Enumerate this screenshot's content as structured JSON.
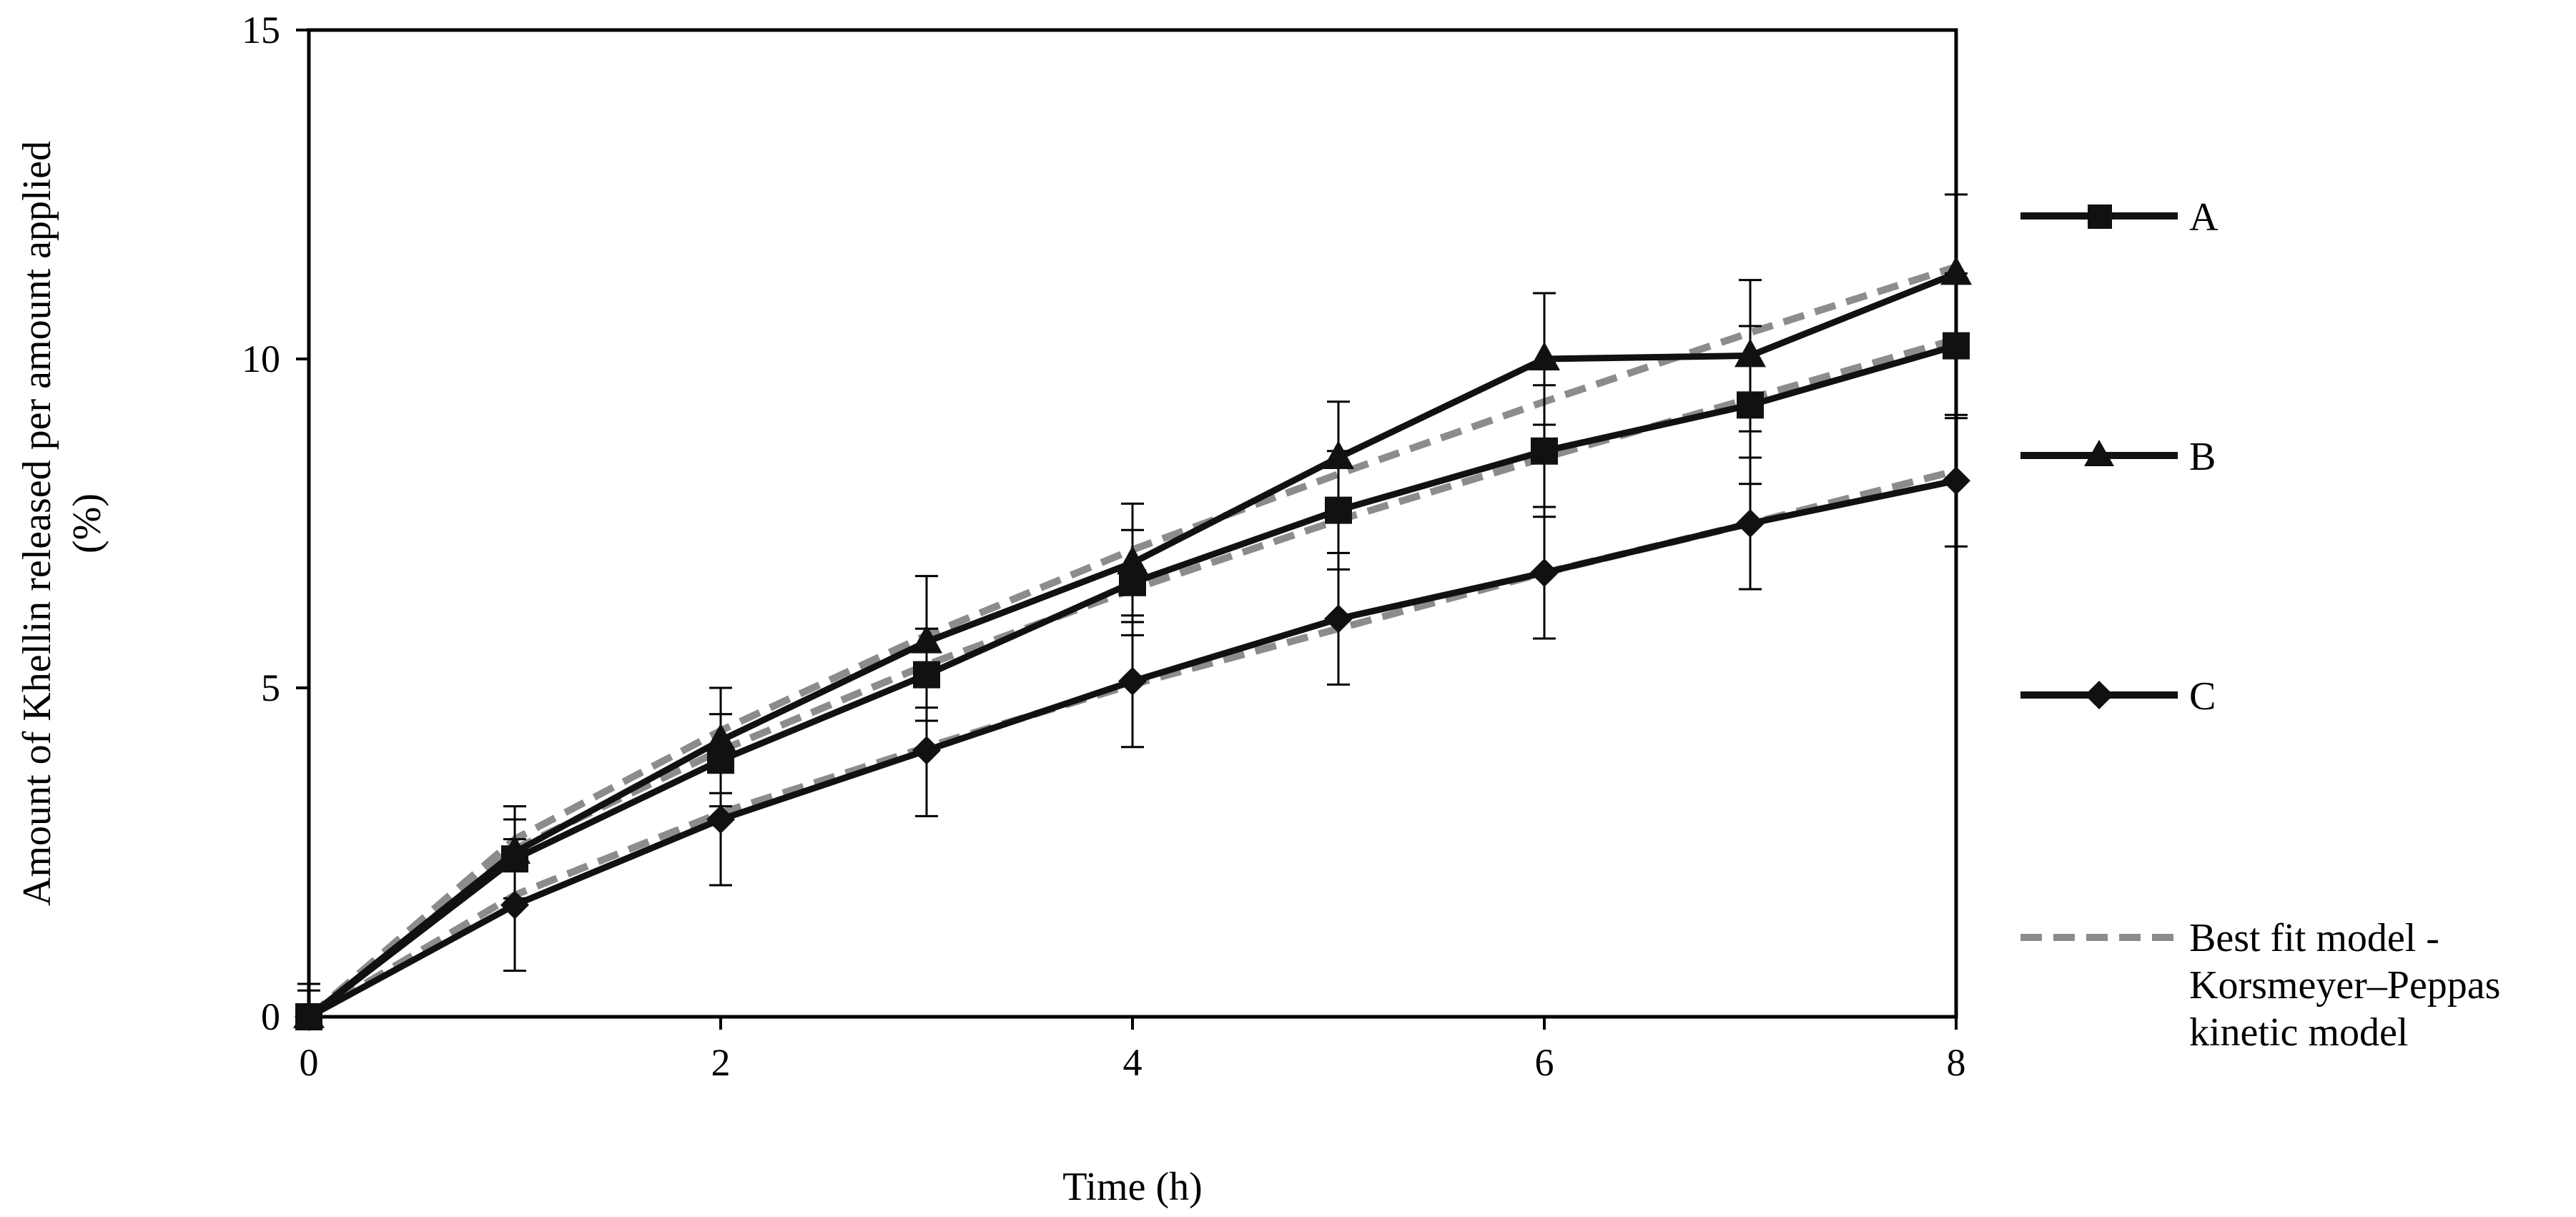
{
  "chart_data": {
    "type": "line",
    "title": "",
    "xlabel": "Time (h)",
    "ylabel_line1": "Amount of Khellin released per amount applied",
    "ylabel_line2": "(%)",
    "xlim": [
      0,
      8
    ],
    "ylim": [
      0,
      15
    ],
    "xticks": [
      "0",
      "2",
      "4",
      "6",
      "8"
    ],
    "yticks": [
      "0",
      "5",
      "10",
      "15"
    ],
    "grid": false,
    "legend_position": "right",
    "x": [
      0,
      1,
      2,
      3,
      4,
      5,
      6,
      7,
      8
    ],
    "series": [
      {
        "name": "A",
        "marker": "square",
        "values": [
          0,
          2.4,
          3.9,
          5.2,
          6.6,
          7.7,
          8.6,
          9.3,
          10.2
        ],
        "errors": [
          0.5,
          0.6,
          0.7,
          0.7,
          0.8,
          0.9,
          1.0,
          1.2,
          1.1
        ],
        "fit": [
          0,
          2.55,
          4.05,
          5.35,
          6.5,
          7.55,
          8.5,
          9.4,
          10.3
        ]
      },
      {
        "name": "B",
        "marker": "triangle",
        "values": [
          0,
          2.5,
          4.2,
          5.7,
          6.9,
          8.5,
          10.0,
          10.05,
          11.3
        ],
        "errors": [
          0.5,
          0.7,
          0.8,
          1.0,
          0.9,
          0.85,
          1.0,
          1.15,
          1.2
        ],
        "fit": [
          0,
          2.7,
          4.35,
          5.8,
          7.1,
          8.25,
          9.35,
          10.4,
          11.4
        ]
      },
      {
        "name": "C",
        "marker": "diamond",
        "values": [
          0,
          1.7,
          3.0,
          4.05,
          5.1,
          6.05,
          6.75,
          7.5,
          8.15
        ],
        "errors": [
          0.4,
          1.0,
          1.0,
          1.0,
          1.0,
          1.0,
          1.0,
          1.0,
          1.0
        ],
        "fit": [
          0,
          1.85,
          3.1,
          4.1,
          5.05,
          5.9,
          6.75,
          7.5,
          8.3
        ]
      }
    ],
    "fit_legend": {
      "line1": "Best fit model -",
      "line2": "Korsmeyer–Peppas",
      "line3": "kinetic model"
    },
    "colors": {
      "series": "#111111",
      "fit": "#8c8c8c",
      "axis": "#000000"
    }
  }
}
